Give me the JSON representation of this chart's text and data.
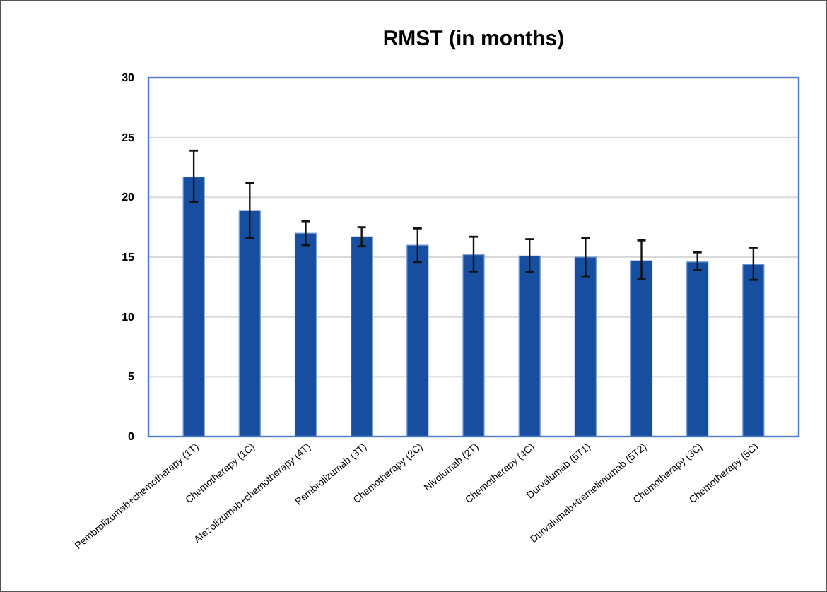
{
  "chart_data": {
    "type": "bar",
    "title": "RMST (in months)",
    "categories": [
      "Pembrolizumab+chemotherapy (1T)",
      "Chemotherapy (1C)",
      "Atezolizumab+chemotherapy (4T)",
      "Pembrolizumab (3T)",
      "Chemotherapy (2C)",
      "Nivolumab (2T)",
      "Chemotherapy (4C)",
      "Durvalumab (5T1)",
      "Durvalumab+tremelimumab (5T2)",
      "Chemotherapy (3C)",
      "Chemotherapy (5C)"
    ],
    "values": [
      21.7,
      18.9,
      17.0,
      16.7,
      16.0,
      15.2,
      15.1,
      15.0,
      14.7,
      14.6,
      14.4
    ],
    "errors": [
      [
        19.6,
        23.9
      ],
      [
        16.6,
        21.2
      ],
      [
        16.0,
        18.0
      ],
      [
        15.9,
        17.5
      ],
      [
        14.6,
        17.4
      ],
      [
        13.8,
        16.7
      ],
      [
        13.75,
        16.5
      ],
      [
        13.4,
        16.6
      ],
      [
        13.2,
        16.4
      ],
      [
        13.9,
        15.4
      ],
      [
        13.1,
        15.8
      ]
    ],
    "color": "#174ea0",
    "ylim": [
      0,
      30
    ],
    "yticks": [
      0,
      5,
      10,
      15,
      20,
      25,
      30
    ],
    "grid": "y"
  }
}
